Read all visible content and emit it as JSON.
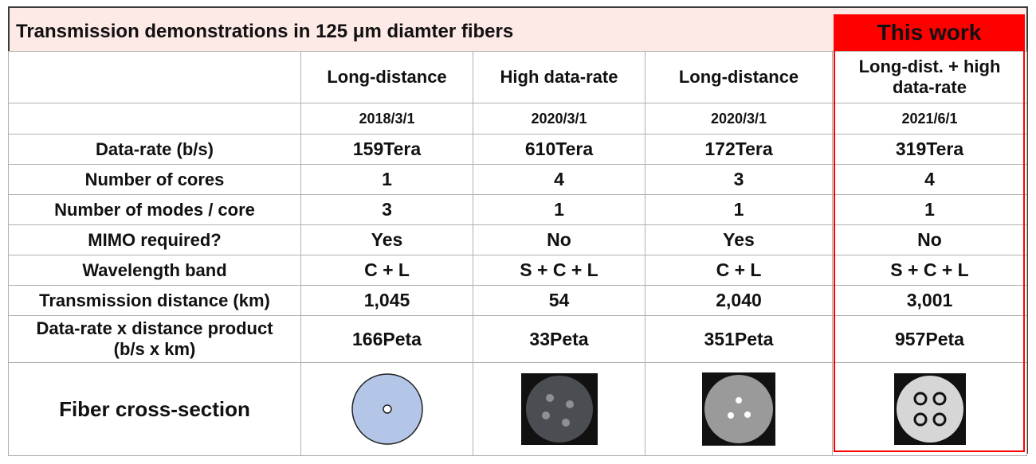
{
  "title": "Transmission demonstrations in 125 μm diamter fibers",
  "highlight_label": "This work",
  "columns": [
    {
      "type": "Long-distance",
      "date": "2018/3/1"
    },
    {
      "type": "High data-rate",
      "date": "2020/3/1"
    },
    {
      "type": "Long-distance",
      "date": "2020/3/1"
    },
    {
      "type": "Long-dist. + high data-rate",
      "date": "2021/6/1"
    }
  ],
  "rows": [
    {
      "label": "Data-rate (b/s)",
      "values": [
        "159Tera",
        "610Tera",
        "172Tera",
        "319Tera"
      ]
    },
    {
      "label": "Number of cores",
      "values": [
        "1",
        "4",
        "3",
        "4"
      ]
    },
    {
      "label": "Number of modes / core",
      "values": [
        "3",
        "1",
        "1",
        "1"
      ]
    },
    {
      "label": "MIMO required?",
      "values": [
        "Yes",
        "No",
        "Yes",
        "No"
      ]
    },
    {
      "label": "Wavelength band",
      "values": [
        "C + L",
        "S + C + L",
        "C + L",
        "S + C + L"
      ]
    },
    {
      "label": "Transmission distance (km)",
      "values": [
        "1,045",
        "54",
        "2,040",
        "3,001"
      ]
    }
  ],
  "product": {
    "label_line1": "Data-rate x distance product",
    "label_line2": "(b/s x km)",
    "values": [
      "166Peta",
      "33Peta",
      "351Peta",
      "957Peta"
    ],
    "highlight_color": "#ff0000"
  },
  "cross_section_label": "Fiber cross-section"
}
